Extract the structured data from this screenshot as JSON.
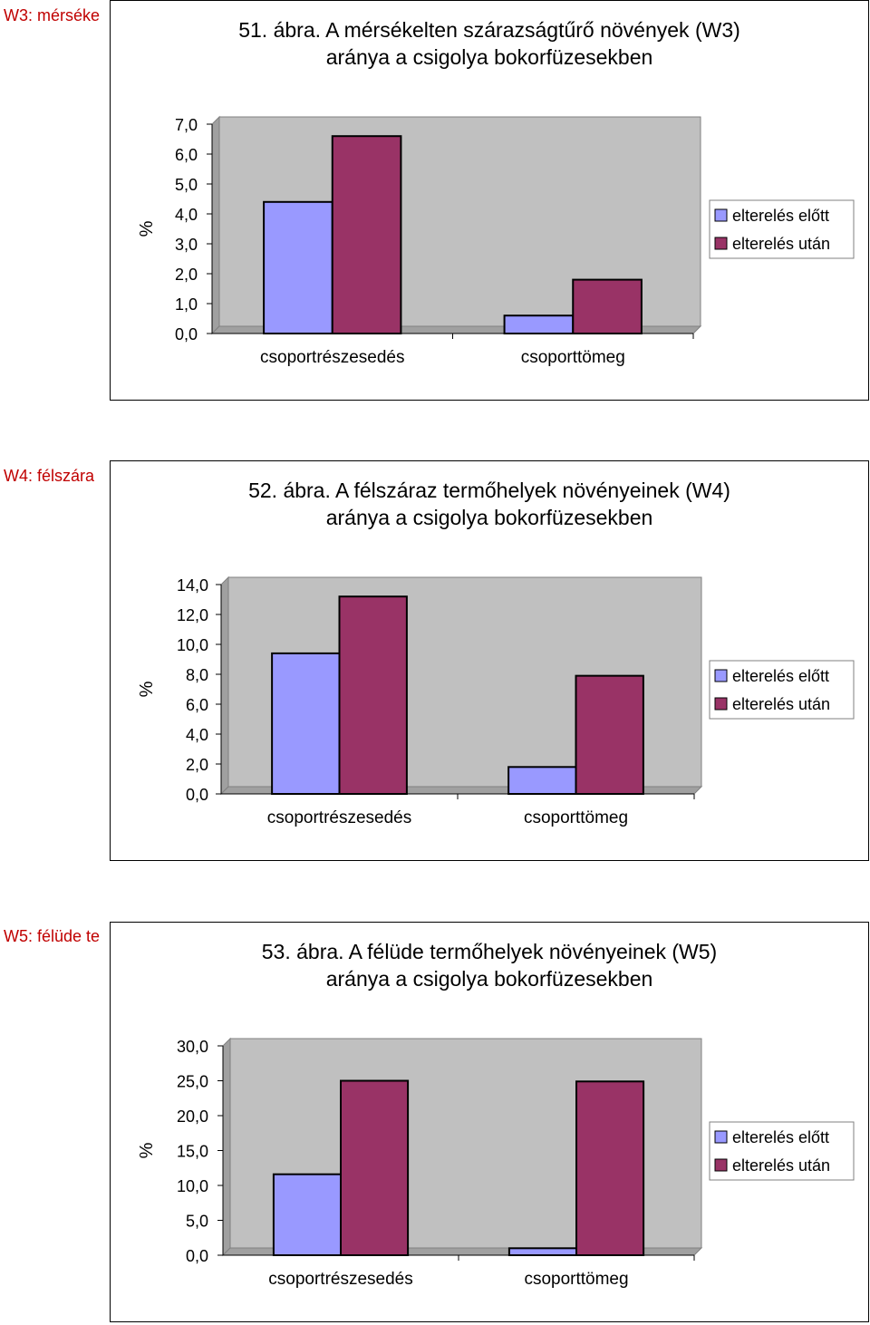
{
  "sections": [
    {
      "label": "W3: mérséke"
    },
    {
      "label": "W4: félszára"
    },
    {
      "label": "W5: félüde te"
    }
  ],
  "colors": {
    "before": "#9999ff",
    "after": "#993366",
    "plot_bg": "#c0c0c0",
    "section_label": "#c00000"
  },
  "chart_data": [
    {
      "type": "bar",
      "title": [
        "51. ábra. A mérsékelten szárazságtűrő növények (W3)",
        "aránya a csigolya bokorfüzesekben"
      ],
      "ylabel": "%",
      "xlabel": "",
      "categories": [
        "csoportrészesedés",
        "csoporttömeg"
      ],
      "series": [
        {
          "name": "elterelés előtt",
          "values": [
            4.4,
            0.6
          ]
        },
        {
          "name": "elterelés után",
          "values": [
            6.6,
            1.8
          ]
        }
      ],
      "ylim": [
        0,
        7
      ],
      "yticks": [
        "0,0",
        "1,0",
        "2,0",
        "3,0",
        "4,0",
        "5,0",
        "6,0",
        "7,0"
      ],
      "grid": false,
      "legend": "right"
    },
    {
      "type": "bar",
      "title": [
        "52. ábra. A félszáraz termőhelyek növényeinek (W4)",
        "aránya a csigolya bokorfüzesekben"
      ],
      "ylabel": "%",
      "xlabel": "",
      "categories": [
        "csoportrészesedés",
        "csoporttömeg"
      ],
      "series": [
        {
          "name": "elterelés előtt",
          "values": [
            9.4,
            1.8
          ]
        },
        {
          "name": "elterelés után",
          "values": [
            13.2,
            7.9
          ]
        }
      ],
      "ylim": [
        0,
        14
      ],
      "yticks": [
        "0,0",
        "2,0",
        "4,0",
        "6,0",
        "8,0",
        "10,0",
        "12,0",
        "14,0"
      ],
      "grid": false,
      "legend": "right"
    },
    {
      "type": "bar",
      "title": [
        "53. ábra. A félüde termőhelyek növényeinek (W5)",
        "aránya a csigolya bokorfüzesekben"
      ],
      "ylabel": "%",
      "xlabel": "",
      "categories": [
        "csoportrészesedés",
        "csoporttömeg"
      ],
      "series": [
        {
          "name": "elterelés előtt",
          "values": [
            11.6,
            1.0
          ]
        },
        {
          "name": "elterelés után",
          "values": [
            25.0,
            24.9
          ]
        }
      ],
      "ylim": [
        0,
        30
      ],
      "yticks": [
        "0,0",
        "5,0",
        "10,0",
        "15,0",
        "20,0",
        "25,0",
        "30,0"
      ],
      "grid": false,
      "legend": "right"
    }
  ]
}
